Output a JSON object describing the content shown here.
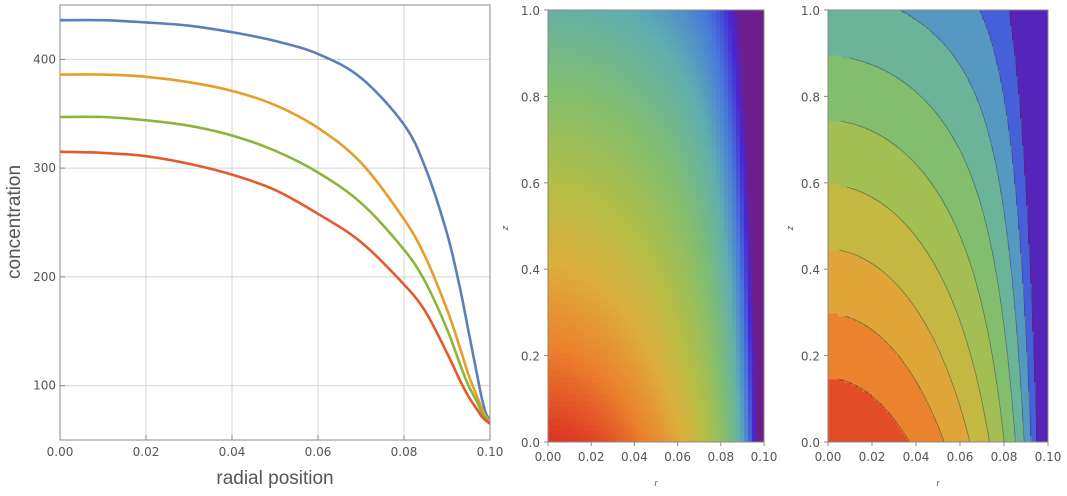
{
  "chart_data": [
    {
      "type": "line",
      "xlabel": "radial position",
      "ylabel": "concentration",
      "xlim": [
        0,
        0.1
      ],
      "ylim": [
        50,
        450
      ],
      "grid": true,
      "x_ticks": [
        "0.00",
        "0.02",
        "0.04",
        "0.06",
        "0.08",
        "0.10"
      ],
      "y_ticks": [
        "100",
        "200",
        "300",
        "400"
      ],
      "x_tick_values": [
        0,
        0.02,
        0.04,
        0.06,
        0.08,
        0.1
      ],
      "y_tick_values": [
        100,
        200,
        300,
        400
      ],
      "colors": [
        "#5b7fb8",
        "#e89d2b",
        "#8cb53b",
        "#e35a2e"
      ],
      "x": [
        0,
        0.01,
        0.02,
        0.03,
        0.04,
        0.05,
        0.06,
        0.07,
        0.08,
        0.085,
        0.09,
        0.093,
        0.095,
        0.097,
        0.098,
        0.099,
        0.1
      ],
      "series": [
        {
          "values": [
            436,
            436,
            434,
            431,
            425,
            417,
            405,
            383,
            340,
            300,
            240,
            190,
            150,
            110,
            90,
            75,
            68
          ]
        },
        {
          "values": [
            386,
            386,
            384,
            379,
            371,
            358,
            337,
            305,
            253,
            218,
            170,
            135,
            110,
            90,
            80,
            72,
            67
          ]
        },
        {
          "values": [
            347,
            347,
            344,
            339,
            330,
            316,
            296,
            268,
            225,
            195,
            152,
            120,
            100,
            85,
            76,
            70,
            66
          ]
        },
        {
          "values": [
            315,
            314,
            311,
            304,
            294,
            280,
            258,
            232,
            193,
            168,
            130,
            105,
            90,
            78,
            72,
            68,
            65
          ]
        }
      ]
    },
    {
      "type": "heatmap",
      "xlabel": "r",
      "ylabel": "z",
      "xlim": [
        0,
        0.1
      ],
      "ylim": [
        0,
        1
      ],
      "x_ticks": [
        "0.00",
        "0.02",
        "0.04",
        "0.06",
        "0.08",
        "0.10"
      ],
      "y_ticks": [
        "0.0",
        "0.2",
        "0.4",
        "0.6",
        "0.8",
        "1.0"
      ],
      "x_tick_values": [
        0,
        0.02,
        0.04,
        0.06,
        0.08,
        0.1
      ],
      "y_tick_values": [
        0,
        0.2,
        0.4,
        0.6,
        0.8,
        1.0
      ]
    },
    {
      "type": "contour",
      "xlabel": "r",
      "ylabel": "z",
      "xlim": [
        0,
        0.1
      ],
      "ylim": [
        0,
        1
      ],
      "x_ticks": [
        "0.00",
        "0.02",
        "0.04",
        "0.06",
        "0.08",
        "0.10"
      ],
      "y_ticks": [
        "0.0",
        "0.2",
        "0.4",
        "0.6",
        "0.8",
        "1.0"
      ],
      "x_tick_values": [
        0,
        0.02,
        0.04,
        0.06,
        0.08,
        0.1
      ],
      "y_tick_values": [
        0,
        0.2,
        0.4,
        0.6,
        0.8,
        1.0
      ],
      "contour_levels": 10
    }
  ]
}
